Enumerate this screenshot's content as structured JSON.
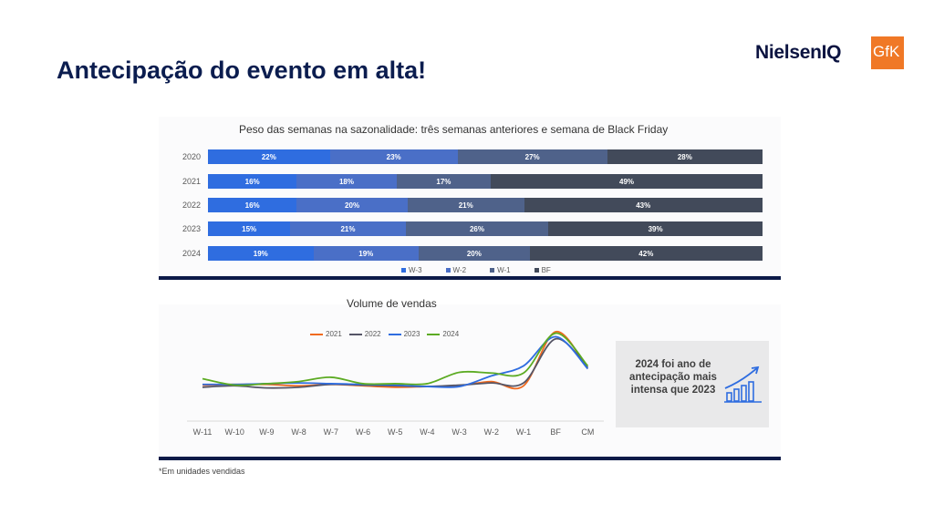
{
  "page": {
    "title": "Antecipação do evento em alta!",
    "logo_text": "NielsenIQ",
    "logo_gfk": "GfK",
    "footnote": "*Em unidades vendidas"
  },
  "callout": {
    "text": "2024 foi ano de antecipação mais intensa que 2023",
    "icon": "growth-chart-icon"
  },
  "colors": {
    "title": "#0b1d4f",
    "w3": "#2f6de0",
    "w2": "#4a6fc7",
    "w1": "#4f628a",
    "bf": "#424a5a",
    "l2021": "#f06a1f",
    "l2022": "#555566",
    "l2023": "#2f6de0",
    "l2024": "#5cab23",
    "panel_bar": "#0c1a48",
    "gfk": "#f07826"
  },
  "chart_data": [
    {
      "type": "bar",
      "stacked": true,
      "orientation": "horizontal",
      "title": "Peso das semanas na sazonalidade: três semanas anteriores e semana de Black Friday",
      "categories": [
        "2020",
        "2021",
        "2022",
        "2023",
        "2024"
      ],
      "series": [
        {
          "name": "W-3",
          "values": [
            22,
            16,
            16,
            15,
            19
          ]
        },
        {
          "name": "W-2",
          "values": [
            23,
            18,
            20,
            21,
            19
          ]
        },
        {
          "name": "W-1",
          "values": [
            27,
            17,
            21,
            26,
            20
          ]
        },
        {
          "name": "BF",
          "values": [
            28,
            49,
            43,
            39,
            42
          ]
        }
      ],
      "value_suffix": "%",
      "legend_position": "bottom"
    },
    {
      "type": "line",
      "title": "Volume de vendas",
      "x": [
        "W-11",
        "W-10",
        "W-9",
        "W-8",
        "W-7",
        "W-6",
        "W-5",
        "W-4",
        "W-3",
        "W-2",
        "W-1",
        "BF",
        "CM"
      ],
      "series": [
        {
          "name": "2021",
          "values": [
            25,
            26,
            26,
            24,
            26,
            24,
            22,
            23,
            24,
            30,
            24,
            100,
            48
          ]
        },
        {
          "name": "2022",
          "values": [
            22,
            24,
            21,
            22,
            26,
            25,
            24,
            23,
            25,
            28,
            28,
            90,
            50
          ]
        },
        {
          "name": "2023",
          "values": [
            26,
            26,
            27,
            28,
            27,
            26,
            25,
            23,
            23,
            38,
            52,
            93,
            48
          ]
        },
        {
          "name": "2024",
          "values": [
            34,
            25,
            27,
            30,
            36,
            27,
            27,
            27,
            43,
            42,
            42,
            98,
            52
          ]
        }
      ],
      "legend_position": "top",
      "grid": false
    }
  ]
}
